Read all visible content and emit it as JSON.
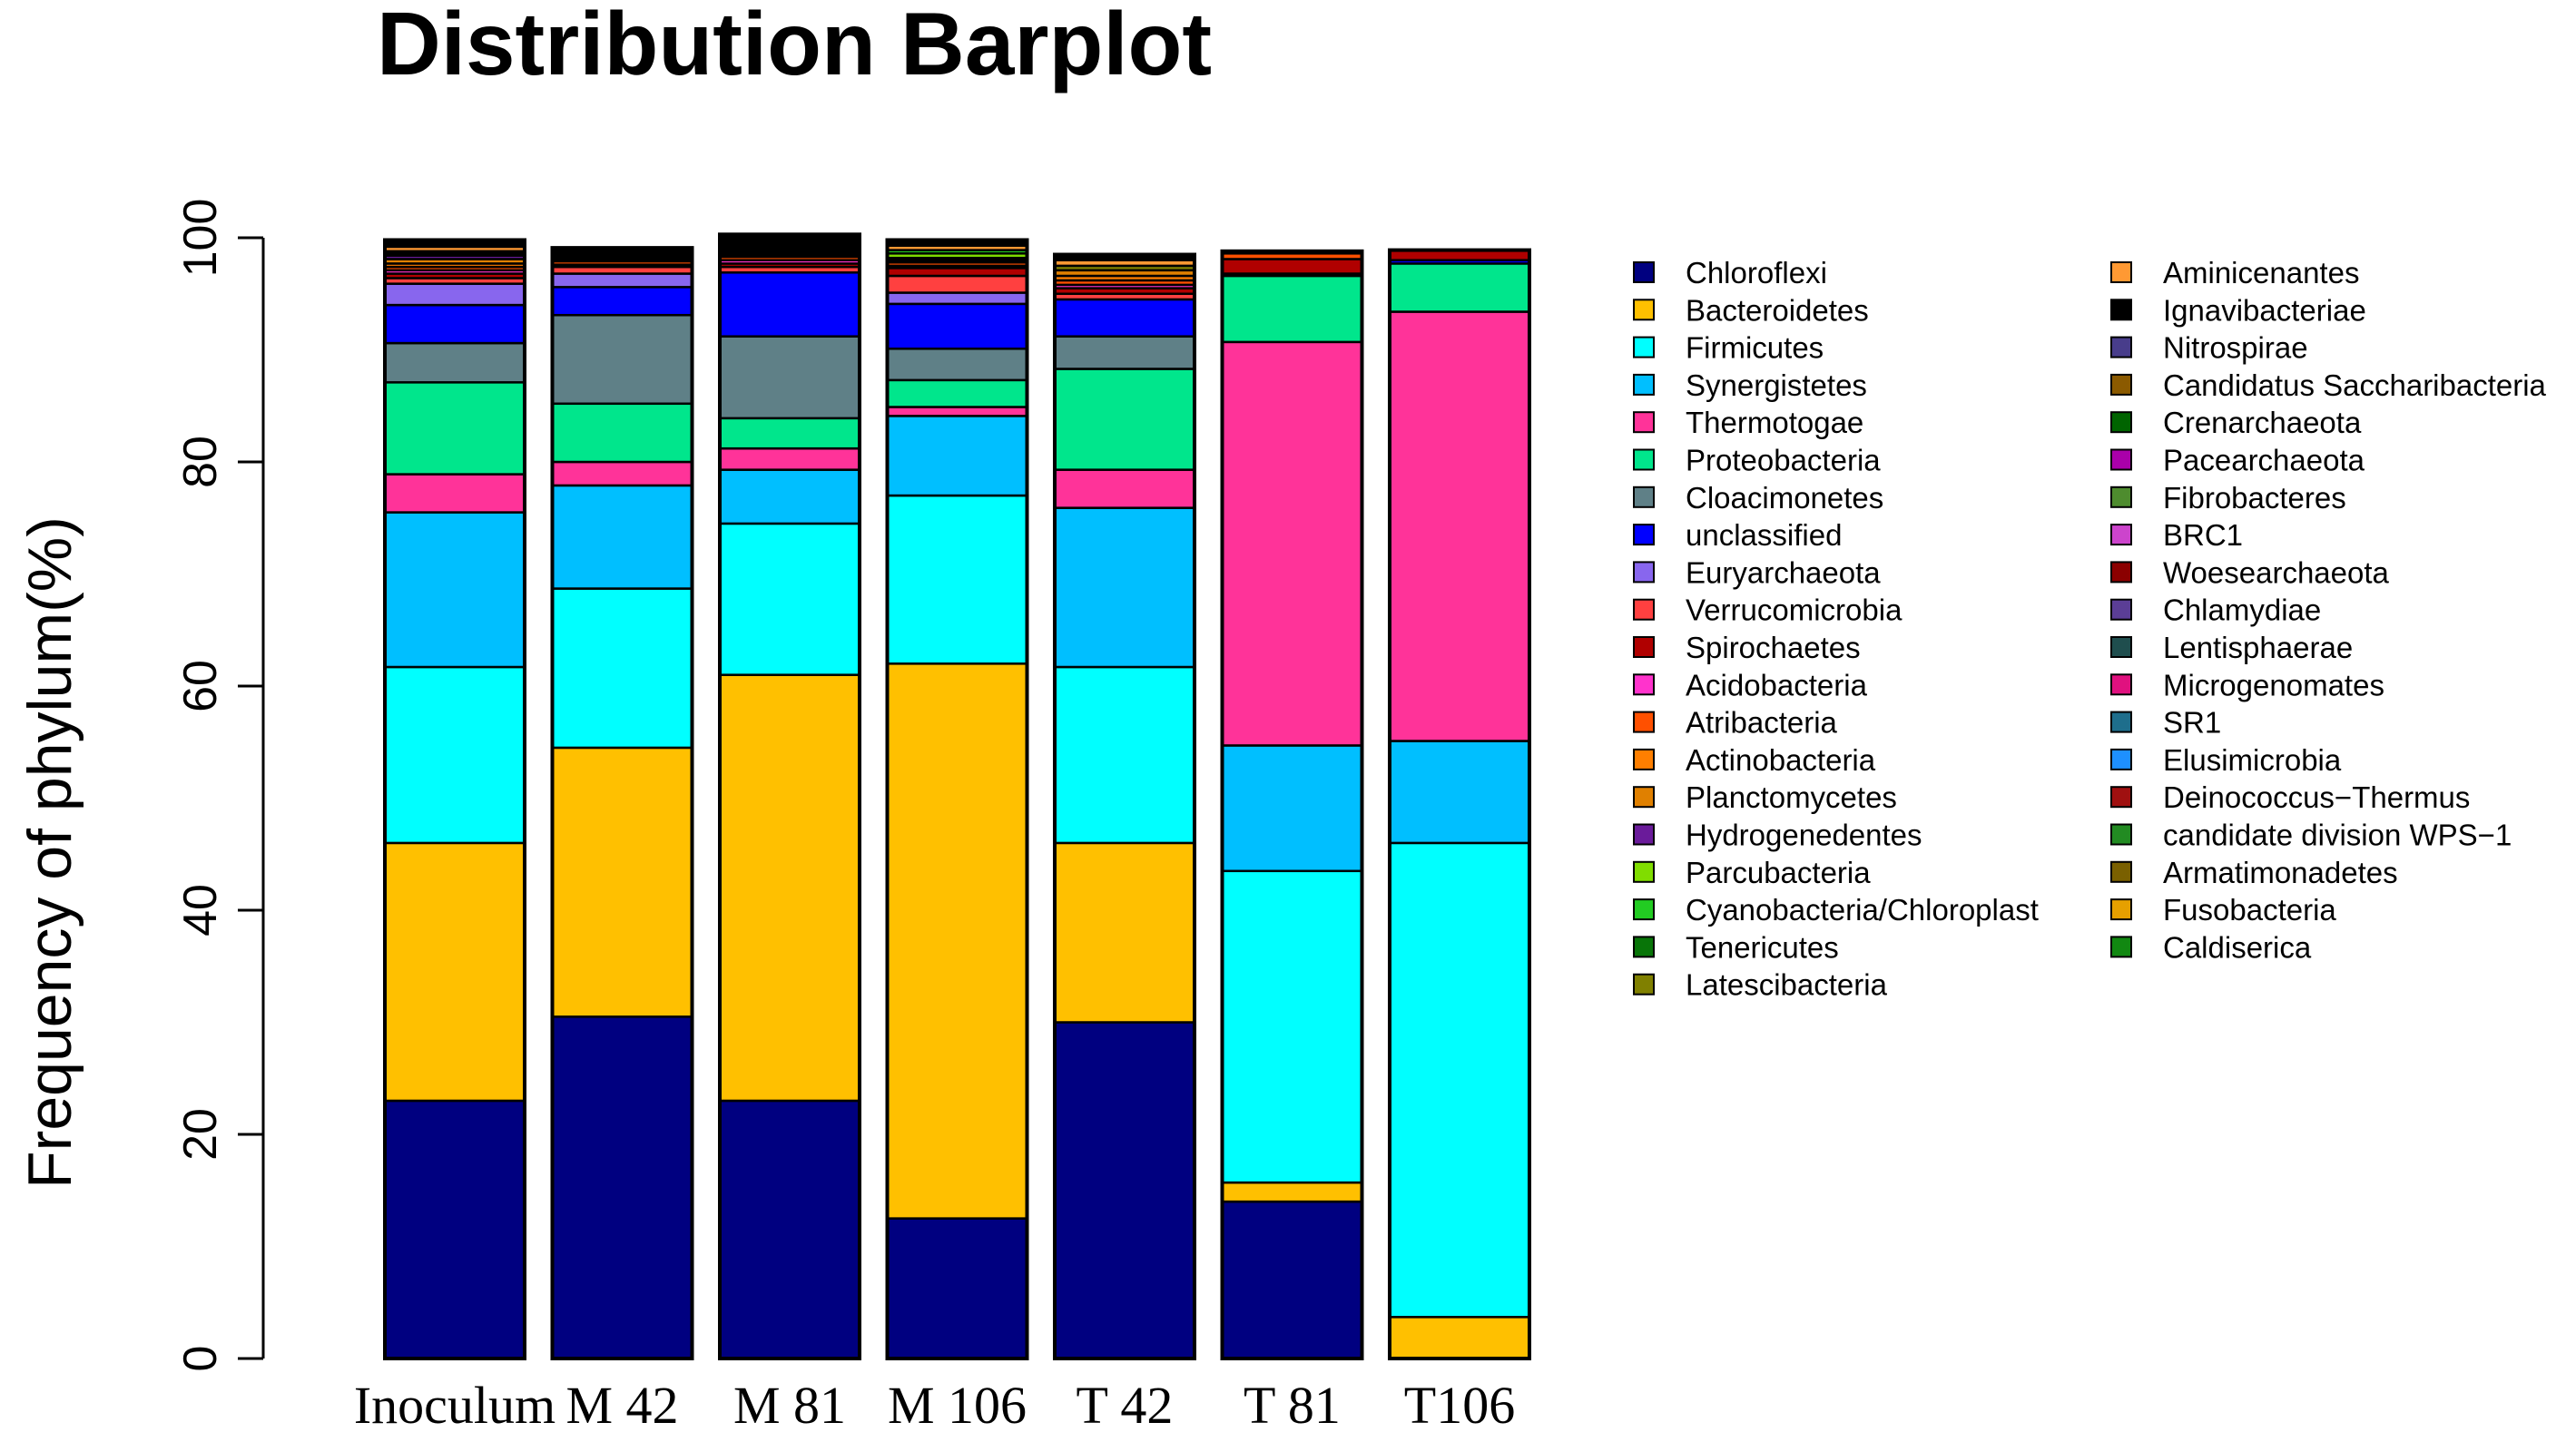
{
  "chart_data": {
    "type": "bar",
    "stacked": true,
    "title": "Distribution Barplot",
    "xlabel": "",
    "ylabel": "Frequency of phylum(%)",
    "ylim": [
      0,
      100
    ],
    "yticks": [
      0,
      20,
      40,
      60,
      80,
      100
    ],
    "grid": false,
    "legend_position": "right, two columns",
    "categories": [
      "Inoculum",
      "M 42",
      "M 81",
      "M 106",
      "T 42",
      "T 81",
      "T106"
    ],
    "series": [
      {
        "name": "Chloroflexi",
        "color": "#000080",
        "values": [
          23.0,
          30.5,
          23.0,
          12.5,
          30.0,
          14.0,
          0.0
        ]
      },
      {
        "name": "Bacteroidetes",
        "color": "#FFC000",
        "values": [
          23.0,
          24.0,
          38.0,
          49.5,
          16.0,
          1.7,
          3.7
        ]
      },
      {
        "name": "Firmicutes",
        "color": "#00FFFF",
        "values": [
          15.7,
          14.2,
          13.5,
          15.0,
          15.7,
          27.8,
          42.3
        ]
      },
      {
        "name": "Synergistetes",
        "color": "#00BFFF",
        "values": [
          13.8,
          9.2,
          4.8,
          7.1,
          14.2,
          11.2,
          9.1
        ]
      },
      {
        "name": "Thermotogae",
        "color": "#FF3399",
        "values": [
          3.4,
          2.1,
          1.9,
          0.8,
          3.4,
          36.0,
          38.3
        ]
      },
      {
        "name": "Proteobacteria",
        "color": "#00E68C",
        "values": [
          8.2,
          5.2,
          2.7,
          2.4,
          9.0,
          5.9,
          4.3
        ]
      },
      {
        "name": "Cloacimonetes",
        "color": "#5F8087",
        "values": [
          3.5,
          7.9,
          7.3,
          2.8,
          2.9,
          0.0,
          0.0
        ]
      },
      {
        "name": "unclassified",
        "color": "#0000FF",
        "values": [
          3.4,
          2.5,
          5.7,
          4.0,
          3.3,
          0.0,
          0.3
        ]
      },
      {
        "name": "Euryarchaeota",
        "color": "#8866EE",
        "values": [
          1.9,
          1.2,
          0.0,
          1.0,
          0.0,
          0.0,
          0.0
        ]
      },
      {
        "name": "Verrucomicrobia",
        "color": "#FF4040",
        "values": [
          0.5,
          0.6,
          0.5,
          1.5,
          0.5,
          0.2,
          0.0
        ]
      },
      {
        "name": "Spirochaetes",
        "color": "#B00000",
        "values": [
          0.4,
          0.2,
          0.3,
          0.7,
          0.5,
          1.3,
          0.9
        ]
      },
      {
        "name": "Acidobacteria",
        "color": "#FF33CC",
        "values": [
          0.3,
          0.0,
          0.3,
          0.2,
          0.3,
          0.0,
          0.0
        ]
      },
      {
        "name": "Atribacteria",
        "color": "#FF5000",
        "values": [
          0.3,
          0.3,
          0.3,
          0.3,
          0.4,
          0.5,
          0.0
        ]
      },
      {
        "name": "Actinobacteria",
        "color": "#FF7F00",
        "values": [
          0.3,
          0.2,
          0.2,
          0.2,
          0.4,
          0.2,
          0.0
        ]
      },
      {
        "name": "Planctomycetes",
        "color": "#E08000",
        "values": [
          0.4,
          0.2,
          0.2,
          0.2,
          0.5,
          0.0,
          0.0
        ]
      },
      {
        "name": "Hydrogenedentes",
        "color": "#6A1B9A",
        "values": [
          0.3,
          0.2,
          0.0,
          0.0,
          0.0,
          0.0,
          0.0
        ]
      },
      {
        "name": "Parcubacteria",
        "color": "#80DD00",
        "values": [
          0.2,
          0.0,
          0.0,
          0.4,
          0.0,
          0.0,
          0.0
        ]
      },
      {
        "name": "Cyanobacteria/Chloroplast",
        "color": "#22CC22",
        "values": [
          0.0,
          0.0,
          0.0,
          0.3,
          0.0,
          0.0,
          0.0
        ]
      },
      {
        "name": "Tenericutes",
        "color": "#087508",
        "values": [
          0.0,
          0.0,
          0.0,
          0.0,
          0.0,
          0.0,
          0.0
        ]
      },
      {
        "name": "Latescibacteria",
        "color": "#808000",
        "values": [
          0.2,
          0.0,
          0.0,
          0.0,
          0.4,
          0.0,
          0.0
        ]
      },
      {
        "name": "Aminicenantes",
        "color": "#FF9933",
        "values": [
          0.4,
          0.2,
          0.0,
          0.4,
          0.5,
          0.0,
          0.0
        ]
      },
      {
        "name": "Ignavibacteriae",
        "color": "#000000",
        "values": [
          0.6,
          0.4,
          1.6,
          0.5,
          0.5,
          0.0,
          0.0
        ]
      },
      {
        "name": "Nitrospirae",
        "color": "#483D8B",
        "values": [
          0.0,
          0.0,
          0.0,
          0.0,
          0.0,
          0.0,
          0.0
        ]
      },
      {
        "name": "Candidatus Saccharibacteria",
        "color": "#8B5A00",
        "values": [
          0.0,
          0.0,
          0.0,
          0.0,
          0.0,
          0.0,
          0.0
        ]
      },
      {
        "name": "Crenarchaeota",
        "color": "#006400",
        "values": [
          0.0,
          0.0,
          0.0,
          0.0,
          0.0,
          0.0,
          0.0
        ]
      },
      {
        "name": "Pacearchaeota",
        "color": "#AA00AA",
        "values": [
          0.0,
          0.0,
          0.0,
          0.0,
          0.0,
          0.0,
          0.0
        ]
      },
      {
        "name": "Fibrobacteres",
        "color": "#4E8C2E",
        "values": [
          0.0,
          0.0,
          0.0,
          0.0,
          0.0,
          0.0,
          0.0
        ]
      },
      {
        "name": "BRC1",
        "color": "#CC44CC",
        "values": [
          0.0,
          0.0,
          0.0,
          0.0,
          0.0,
          0.0,
          0.0
        ]
      },
      {
        "name": "Woesearchaeota",
        "color": "#8B0000",
        "values": [
          0.0,
          0.0,
          0.0,
          0.0,
          0.0,
          0.0,
          0.0
        ]
      },
      {
        "name": "Chlamydiae",
        "color": "#5B3E96",
        "values": [
          0.0,
          0.0,
          0.0,
          0.0,
          0.0,
          0.0,
          0.0
        ]
      },
      {
        "name": "Lentisphaerae",
        "color": "#1F4E4E",
        "values": [
          0.0,
          0.0,
          0.0,
          0.0,
          0.0,
          0.0,
          0.0
        ]
      },
      {
        "name": "Microgenomates",
        "color": "#E0117F",
        "values": [
          0.0,
          0.0,
          0.0,
          0.0,
          0.0,
          0.0,
          0.0
        ]
      },
      {
        "name": "SR1",
        "color": "#1E6E8C",
        "values": [
          0.0,
          0.0,
          0.0,
          0.0,
          0.0,
          0.0,
          0.0
        ]
      },
      {
        "name": "Elusimicrobia",
        "color": "#1E90FF",
        "values": [
          0.0,
          0.0,
          0.0,
          0.0,
          0.0,
          0.0,
          0.0
        ]
      },
      {
        "name": "Deinococcus−Thermus",
        "color": "#A01010",
        "values": [
          0.0,
          0.0,
          0.0,
          0.0,
          0.0,
          0.0,
          0.0
        ]
      },
      {
        "name": "candidate division WPS−1",
        "color": "#228B22",
        "values": [
          0.0,
          0.0,
          0.0,
          0.0,
          0.0,
          0.0,
          0.0
        ]
      },
      {
        "name": "Armatimonadetes",
        "color": "#7A6000",
        "values": [
          0.0,
          0.0,
          0.0,
          0.0,
          0.0,
          0.0,
          0.0
        ]
      },
      {
        "name": "Fusobacteria",
        "color": "#E6A000",
        "values": [
          0.0,
          0.0,
          0.0,
          0.0,
          0.0,
          0.0,
          0.0
        ]
      },
      {
        "name": "Caldiserica",
        "color": "#118811",
        "values": [
          0.0,
          0.0,
          0.0,
          0.0,
          0.0,
          0.0,
          0.0
        ]
      }
    ]
  }
}
